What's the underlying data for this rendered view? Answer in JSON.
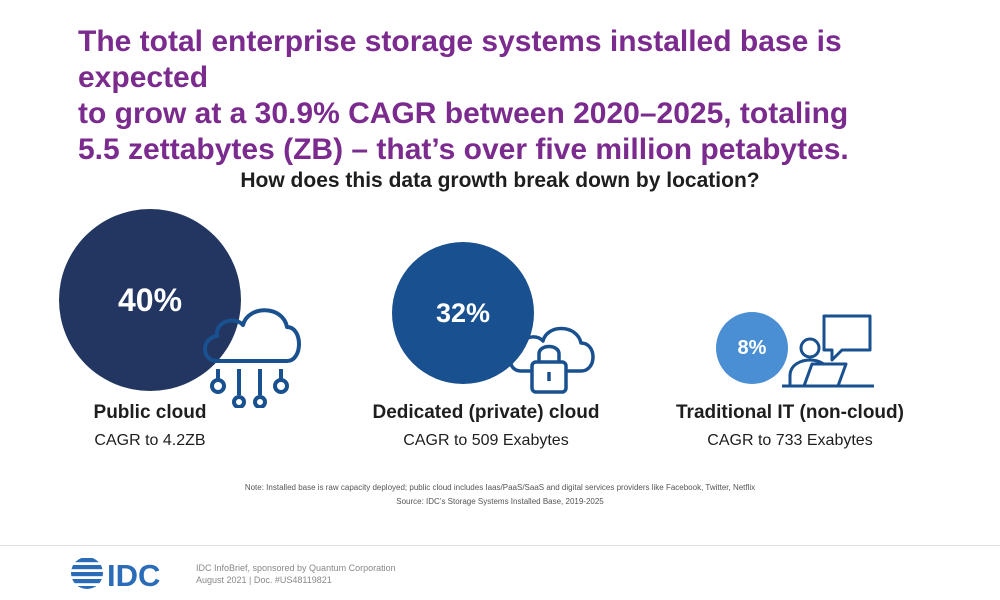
{
  "headline": [
    "The total enterprise storage systems installed base is expected",
    "to grow at a 30.9% CAGR between 2020–2025, totaling",
    "5.5 zettabytes (ZB) – that’s over five million petabytes."
  ],
  "question": "How does this data growth break down by location?",
  "colors": {
    "headline": "#7b2a8e",
    "public_cloud": "#223661",
    "private_cloud": "#19508f",
    "traditional_it": "#4a8fd4"
  },
  "chart_data": {
    "type": "bubble",
    "title": "How does this data growth break down by location?",
    "categories": [
      "Public cloud",
      "Dedicated (private) cloud",
      "Traditional IT (non-cloud)"
    ],
    "values": [
      40,
      32,
      8
    ],
    "value_labels": [
      "40%",
      "32%",
      "8%"
    ],
    "unit": "%",
    "descriptions": [
      "CAGR to 4.2ZB",
      "CAGR to 509 Exabytes",
      "CAGR to 733 Exabytes"
    ],
    "icons": [
      "cloud-network-icon",
      "cloud-lock-icon",
      "person-laptop-chat-icon"
    ]
  },
  "note": [
    "Note: Installed base is raw capacity deployed; public cloud includes Iaas/PaaS/SaaS and digital services providers like Facebook, Twitter, Netflix",
    "Source: IDC’s Storage Systems Installed Base, 2019-2025"
  ],
  "footer": {
    "logo_text": "IDC",
    "line1": "IDC InfoBrief, sponsored by Quantum Corporation",
    "line2": "August 2021 | Doc. #US48119821"
  }
}
